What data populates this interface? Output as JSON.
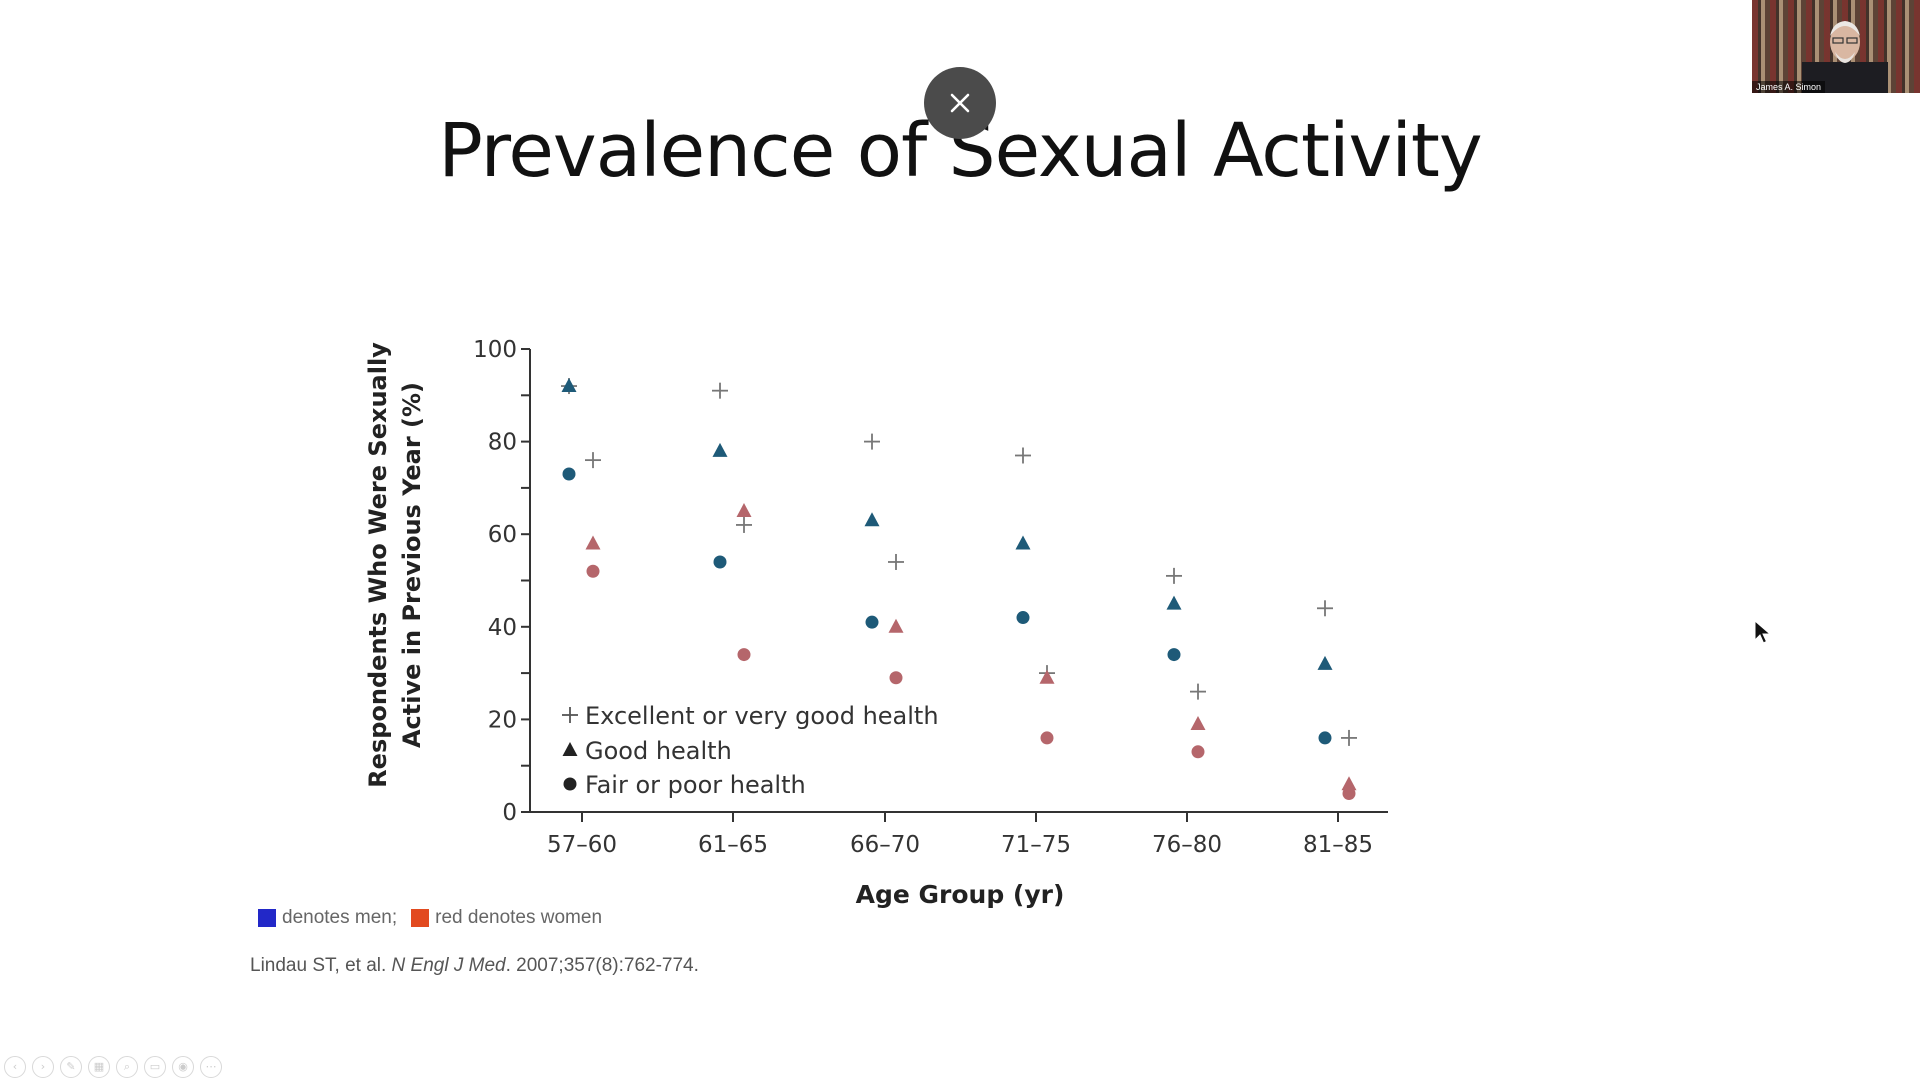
{
  "slide": {
    "title": "Prevalence of Sexual Activity"
  },
  "overlay": {
    "close_icon": "close-icon",
    "participant_name": "James A. Simon"
  },
  "legend_note": {
    "men_color": "#2228c8",
    "men_text": "denotes men;",
    "women_color": "#e24a1f",
    "women_text": "red denotes women"
  },
  "citation": {
    "authors": "Lindau ST, et al.",
    "journal": "N Engl J Med",
    "details": ". 2007;357(8):762-774."
  },
  "chart_data": {
    "type": "scatter",
    "xlabel": "Age Group (yr)",
    "ylabel_line1": "Respondents Who Were Sexually",
    "ylabel_line2": "Active in Previous Year (%)",
    "categories": [
      "57–60",
      "61–65",
      "66–70",
      "71–75",
      "76–80",
      "81–85"
    ],
    "ylim": [
      0,
      100
    ],
    "yticks": [
      "0",
      "20",
      "40",
      "60",
      "80",
      "100"
    ],
    "legend": [
      {
        "marker": "plus",
        "label": "Excellent or very good health"
      },
      {
        "marker": "triangle",
        "label": "Good health"
      },
      {
        "marker": "circle",
        "label": "Fair or poor health"
      }
    ],
    "legend_position": "lower-left",
    "colors": {
      "men": "#1e5a78",
      "women": "#b5666b",
      "plus": "#777777"
    },
    "series": [
      {
        "group": "men",
        "marker": "plus",
        "values": [
          92,
          91,
          80,
          77,
          51,
          44
        ]
      },
      {
        "group": "men",
        "marker": "triangle",
        "values": [
          92,
          78,
          63,
          58,
          45,
          32
        ]
      },
      {
        "group": "men",
        "marker": "circle",
        "values": [
          73,
          54,
          41,
          42,
          34,
          16
        ]
      },
      {
        "group": "women",
        "marker": "plus",
        "values": [
          76,
          62,
          54,
          30,
          26,
          16
        ]
      },
      {
        "group": "women",
        "marker": "triangle",
        "values": [
          58,
          65,
          40,
          29,
          19,
          6
        ]
      },
      {
        "group": "women",
        "marker": "circle",
        "values": [
          52,
          34,
          29,
          16,
          13,
          4
        ]
      }
    ]
  }
}
